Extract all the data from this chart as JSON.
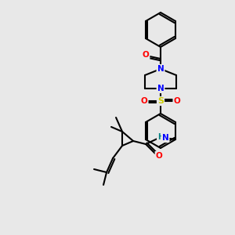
{
  "bg_color": "#e8e8e8",
  "bond_color": "#000000",
  "atom_colors": {
    "O": "#ff0000",
    "N": "#0000ff",
    "S": "#cccc00",
    "H": "#008080",
    "C": "#000000"
  },
  "figsize": [
    3.0,
    3.0
  ],
  "dpi": 100
}
